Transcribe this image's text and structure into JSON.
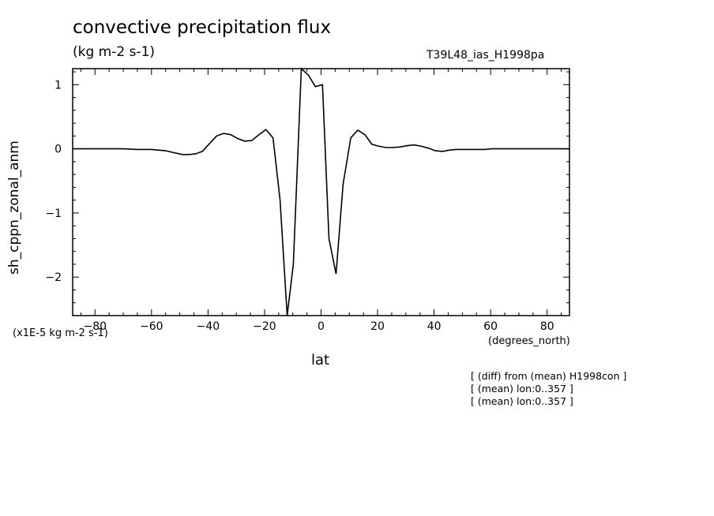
{
  "chart_data": {
    "type": "line",
    "title": "convective precipitation flux",
    "units": "(kg m-2 s-1)",
    "run_label": "T39L48_ias_H1998pa",
    "scale_label": "(x1E-5 kg m-2 s-1)",
    "xlabel": "lat",
    "xunit": "(degrees_north)",
    "ylabel": "sh_cppn_zonal_anm",
    "xlim": [
      -87.9,
      87.9
    ],
    "ylim": [
      -2.6,
      1.25
    ],
    "xticks": [
      -80,
      -60,
      -40,
      -20,
      0,
      20,
      40,
      60,
      80
    ],
    "xtick_labels": [
      "-80",
      "-60",
      "-40",
      "-20",
      "0",
      "20",
      "40",
      "60",
      "80"
    ],
    "yticks": [
      -2,
      -1,
      0,
      1
    ],
    "ytick_labels": [
      "-2",
      "-1",
      "0",
      "1"
    ],
    "grid": false,
    "notes": [
      "[ (diff) from (mean) H1998con ]",
      "[ (mean) lon:0..357 ]",
      "[ (mean) lon:0..357 ]"
    ],
    "series": [
      {
        "x": [
          -87.9,
          -85,
          -80,
          -75,
          -70,
          -65,
          -60,
          -55,
          -52,
          -49,
          -47,
          -44.5,
          -42,
          -39.5,
          -37,
          -34.5,
          -32,
          -29.5,
          -27,
          -24.5,
          -22,
          -19.5,
          -17,
          -14.5,
          -12,
          -9.8,
          -7,
          -4.5,
          -2,
          0.5,
          2.8,
          5.3,
          7.8,
          10.5,
          13,
          15.5,
          18,
          20.5,
          23,
          25.5,
          28,
          30.5,
          33,
          35.5,
          38,
          40.5,
          43,
          45.5,
          48,
          50.5,
          53,
          55.5,
          58,
          60.5,
          63,
          65.5,
          68,
          70.5,
          73,
          75.5,
          78,
          80.5,
          83,
          85.5,
          87.9
        ],
        "y": [
          0,
          0,
          0,
          0,
          0,
          -0.01,
          -0.01,
          -0.03,
          -0.06,
          -0.09,
          -0.09,
          -0.08,
          -0.04,
          0.08,
          0.2,
          0.24,
          0.22,
          0.16,
          0.12,
          0.13,
          0.22,
          0.3,
          0.17,
          -0.8,
          -2.6,
          -1.8,
          1.25,
          1.15,
          0.97,
          1.0,
          -1.4,
          -1.95,
          -0.55,
          0.17,
          0.29,
          0.22,
          0.07,
          0.04,
          0.02,
          0.02,
          0.03,
          0.05,
          0.06,
          0.04,
          0.01,
          -0.03,
          -0.04,
          -0.02,
          -0.01,
          -0.01,
          -0.01,
          -0.01,
          -0.01,
          0,
          0,
          0,
          0,
          0,
          0,
          0,
          0,
          0,
          0,
          0,
          0
        ]
      }
    ]
  }
}
